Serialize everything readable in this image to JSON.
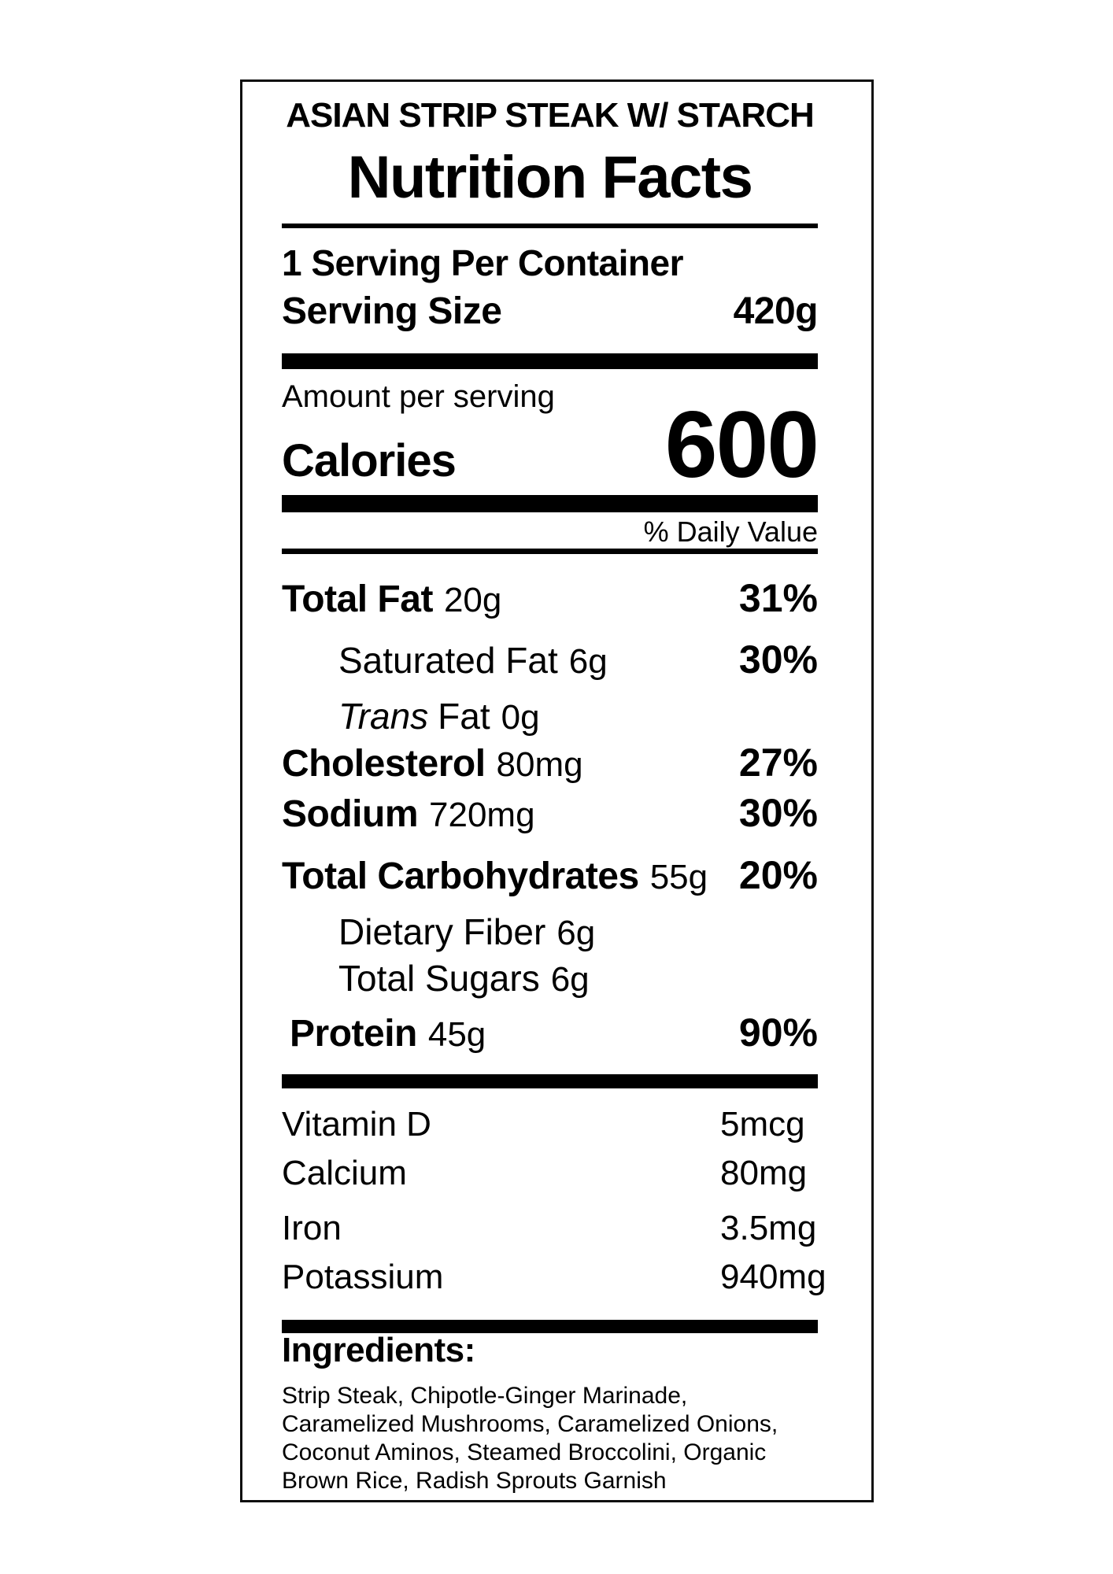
{
  "label": {
    "product_title": "ASIAN STRIP STEAK W/ STARCH",
    "heading": "Nutrition Facts",
    "servings_per_container": "1 Serving Per Container",
    "serving_size_label": "Serving Size",
    "serving_size_value": "420g",
    "amount_per_serving": "Amount per serving",
    "calories_label": "Calories",
    "calories_value": "600",
    "daily_value_header": "% Daily Value",
    "nutrients": [
      {
        "name": "Total Fat",
        "amount": "20g",
        "dv": "31%"
      },
      {
        "name": "Saturated Fat",
        "amount": "6g",
        "dv": "30%"
      },
      {
        "name_italic": "Trans",
        "name": "Fat",
        "amount": "0g",
        "dv": ""
      },
      {
        "name": "Cholesterol",
        "amount": "80mg",
        "dv": "27%"
      },
      {
        "name": "Sodium",
        "amount": "720mg",
        "dv": "30%"
      },
      {
        "name": "Total Carbohydrates",
        "amount": "55g",
        "dv": "20%"
      },
      {
        "name": "Dietary Fiber",
        "amount": "6g",
        "dv": ""
      },
      {
        "name": "Total Sugars",
        "amount": "6g",
        "dv": ""
      },
      {
        "name": "Protein",
        "amount": "45g",
        "dv": "90%"
      }
    ],
    "vitamins": [
      {
        "name": "Vitamin D",
        "value": "5mcg"
      },
      {
        "name": "Calcium",
        "value": "80mg"
      },
      {
        "name": "Iron",
        "value": "3.5mg"
      },
      {
        "name": "Potassium",
        "value": "940mg"
      }
    ],
    "ingredients_label": "Ingredients:",
    "ingredients_text": "Strip Steak, Chipotle-Ginger Marinade, Caramelized Mushrooms, Caramelized Onions, Coconut Aminos, Steamed Broccolini, Organic Brown Rice, Radish Sprouts Garnish",
    "colors": {
      "text": "#000000",
      "background": "#ffffff",
      "rule": "#000000"
    }
  }
}
